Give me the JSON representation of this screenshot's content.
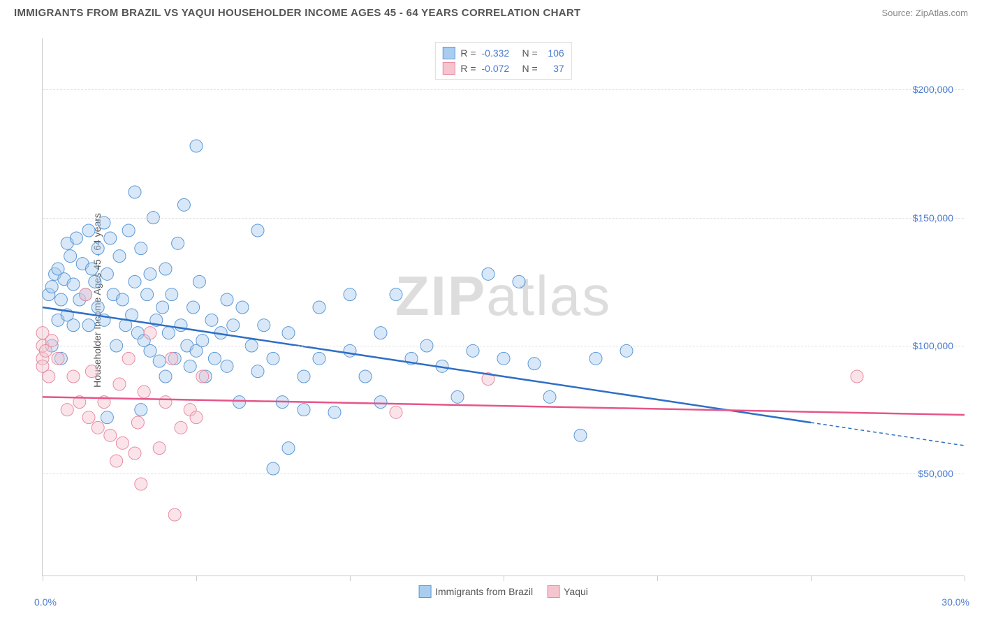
{
  "title": "IMMIGRANTS FROM BRAZIL VS YAQUI HOUSEHOLDER INCOME AGES 45 - 64 YEARS CORRELATION CHART",
  "source": "Source: ZipAtlas.com",
  "watermark_a": "ZIP",
  "watermark_b": "atlas",
  "chart": {
    "type": "scatter",
    "y_label": "Householder Income Ages 45 - 64 years",
    "xlim": [
      0,
      30
    ],
    "ylim": [
      10000,
      220000
    ],
    "x_min_label": "0.0%",
    "x_max_label": "30.0%",
    "x_ticks": [
      0,
      5,
      10,
      15,
      20,
      25,
      30
    ],
    "y_ticks": [
      {
        "v": 50000,
        "label": "$50,000"
      },
      {
        "v": 100000,
        "label": "$100,000"
      },
      {
        "v": 150000,
        "label": "$150,000"
      },
      {
        "v": 200000,
        "label": "$200,000"
      }
    ],
    "grid_color": "#dddddd",
    "background_color": "#ffffff",
    "marker_radius": 9,
    "marker_opacity": 0.45,
    "line_width": 2.5,
    "series": [
      {
        "name": "Immigrants from Brazil",
        "color_fill": "#a9cdf0",
        "color_stroke": "#5c99d6",
        "line_color": "#2e6fc6",
        "R": "-0.332",
        "N": "106",
        "trend": {
          "x1": 0,
          "y1": 115000,
          "x2": 25,
          "y2": 70000,
          "x2_dash": 30,
          "y2_dash": 61000
        },
        "points": [
          [
            0.2,
            120000
          ],
          [
            0.3,
            100000
          ],
          [
            0.3,
            123000
          ],
          [
            0.4,
            128000
          ],
          [
            0.5,
            110000
          ],
          [
            0.5,
            130000
          ],
          [
            0.6,
            118000
          ],
          [
            0.6,
            95000
          ],
          [
            0.7,
            126000
          ],
          [
            0.8,
            140000
          ],
          [
            0.8,
            112000
          ],
          [
            0.9,
            135000
          ],
          [
            1.0,
            108000
          ],
          [
            1.0,
            124000
          ],
          [
            1.1,
            142000
          ],
          [
            1.2,
            118000
          ],
          [
            1.3,
            132000
          ],
          [
            1.4,
            120000
          ],
          [
            1.5,
            145000
          ],
          [
            1.5,
            108000
          ],
          [
            1.6,
            130000
          ],
          [
            1.7,
            125000
          ],
          [
            1.8,
            115000
          ],
          [
            1.8,
            138000
          ],
          [
            2.0,
            148000
          ],
          [
            2.0,
            110000
          ],
          [
            2.1,
            128000
          ],
          [
            2.2,
            142000
          ],
          [
            2.3,
            120000
          ],
          [
            2.4,
            100000
          ],
          [
            2.5,
            135000
          ],
          [
            2.6,
            118000
          ],
          [
            2.7,
            108000
          ],
          [
            2.8,
            145000
          ],
          [
            2.9,
            112000
          ],
          [
            3.0,
            160000
          ],
          [
            3.0,
            125000
          ],
          [
            3.1,
            105000
          ],
          [
            3.2,
            138000
          ],
          [
            3.3,
            102000
          ],
          [
            3.4,
            120000
          ],
          [
            3.5,
            98000
          ],
          [
            3.5,
            128000
          ],
          [
            3.6,
            150000
          ],
          [
            3.7,
            110000
          ],
          [
            3.8,
            94000
          ],
          [
            3.9,
            115000
          ],
          [
            4.0,
            88000
          ],
          [
            4.0,
            130000
          ],
          [
            4.1,
            105000
          ],
          [
            4.2,
            120000
          ],
          [
            4.3,
            95000
          ],
          [
            4.4,
            140000
          ],
          [
            4.5,
            108000
          ],
          [
            4.6,
            155000
          ],
          [
            4.7,
            100000
          ],
          [
            4.8,
            92000
          ],
          [
            4.9,
            115000
          ],
          [
            5.0,
            178000
          ],
          [
            5.0,
            98000
          ],
          [
            5.1,
            125000
          ],
          [
            5.2,
            102000
          ],
          [
            5.3,
            88000
          ],
          [
            5.5,
            110000
          ],
          [
            5.6,
            95000
          ],
          [
            5.8,
            105000
          ],
          [
            6.0,
            118000
          ],
          [
            6.0,
            92000
          ],
          [
            6.2,
            108000
          ],
          [
            6.4,
            78000
          ],
          [
            6.5,
            115000
          ],
          [
            6.8,
            100000
          ],
          [
            7.0,
            145000
          ],
          [
            7.0,
            90000
          ],
          [
            7.2,
            108000
          ],
          [
            7.5,
            95000
          ],
          [
            7.5,
            52000
          ],
          [
            7.8,
            78000
          ],
          [
            8.0,
            105000
          ],
          [
            8.0,
            60000
          ],
          [
            8.5,
            88000
          ],
          [
            8.5,
            75000
          ],
          [
            9.0,
            95000
          ],
          [
            9.0,
            115000
          ],
          [
            9.5,
            74000
          ],
          [
            10.0,
            98000
          ],
          [
            10.0,
            120000
          ],
          [
            10.5,
            88000
          ],
          [
            11.0,
            105000
          ],
          [
            11.0,
            78000
          ],
          [
            11.5,
            120000
          ],
          [
            12.0,
            95000
          ],
          [
            12.5,
            100000
          ],
          [
            13.0,
            92000
          ],
          [
            13.5,
            80000
          ],
          [
            14.0,
            98000
          ],
          [
            14.5,
            128000
          ],
          [
            15.0,
            95000
          ],
          [
            15.5,
            125000
          ],
          [
            16.0,
            93000
          ],
          [
            16.5,
            80000
          ],
          [
            17.5,
            65000
          ],
          [
            18.0,
            95000
          ],
          [
            19.0,
            98000
          ],
          [
            2.1,
            72000
          ],
          [
            3.2,
            75000
          ]
        ]
      },
      {
        "name": "Yaqui",
        "color_fill": "#f5c4ce",
        "color_stroke": "#e88ca2",
        "line_color": "#e6558a",
        "R": "-0.072",
        "N": "37",
        "trend": {
          "x1": 0,
          "y1": 80000,
          "x2": 30,
          "y2": 73000
        },
        "points": [
          [
            0.0,
            100000
          ],
          [
            0.0,
            95000
          ],
          [
            0.0,
            105000
          ],
          [
            0.0,
            92000
          ],
          [
            0.1,
            98000
          ],
          [
            0.2,
            88000
          ],
          [
            0.3,
            102000
          ],
          [
            0.5,
            95000
          ],
          [
            0.8,
            75000
          ],
          [
            1.0,
            88000
          ],
          [
            1.2,
            78000
          ],
          [
            1.4,
            120000
          ],
          [
            1.5,
            72000
          ],
          [
            1.6,
            90000
          ],
          [
            1.8,
            68000
          ],
          [
            2.0,
            78000
          ],
          [
            2.2,
            65000
          ],
          [
            2.4,
            55000
          ],
          [
            2.5,
            85000
          ],
          [
            2.6,
            62000
          ],
          [
            2.8,
            95000
          ],
          [
            3.0,
            58000
          ],
          [
            3.1,
            70000
          ],
          [
            3.3,
            82000
          ],
          [
            3.5,
            105000
          ],
          [
            3.8,
            60000
          ],
          [
            4.0,
            78000
          ],
          [
            4.2,
            95000
          ],
          [
            4.3,
            34000
          ],
          [
            4.5,
            68000
          ],
          [
            4.8,
            75000
          ],
          [
            5.0,
            72000
          ],
          [
            5.2,
            88000
          ],
          [
            11.5,
            74000
          ],
          [
            14.5,
            87000
          ],
          [
            26.5,
            88000
          ],
          [
            3.2,
            46000
          ]
        ]
      }
    ]
  }
}
